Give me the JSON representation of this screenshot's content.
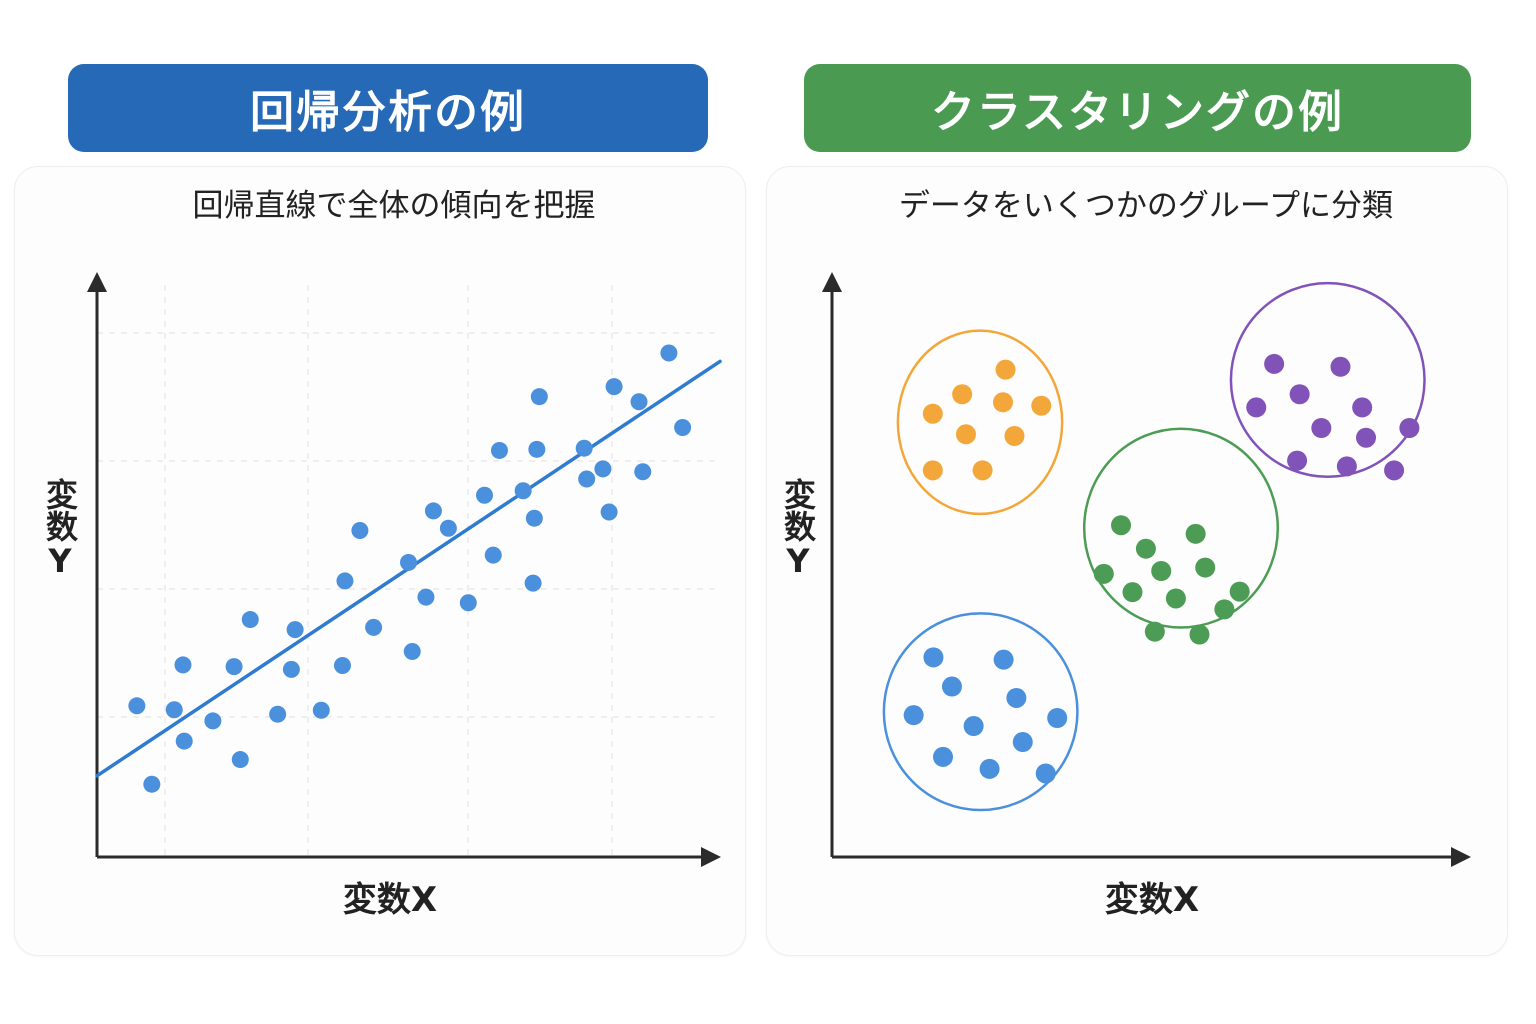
{
  "left_panel": {
    "header": "回帰分析の例",
    "subtitle": "回帰直線で全体の傾向を把握",
    "ylabel": "変数Y",
    "xlabel": "変数X",
    "header_color": "#2669b6",
    "point_color": "#4a90dd",
    "line_color": "#2f7bd0"
  },
  "right_panel": {
    "header": "クラスタリングの例",
    "subtitle": "データをいくつかのグループに分類",
    "ylabel": "変数Y",
    "xlabel": "変数X",
    "header_color": "#4b9a52"
  },
  "chart_data": [
    {
      "type": "scatter",
      "title": "回帰分析の例",
      "subtitle": "回帰直線で全体の傾向を把握",
      "xlabel": "変数X",
      "ylabel": "変数Y",
      "xlim": [
        0,
        100
      ],
      "ylim": [
        0,
        100
      ],
      "grid": true,
      "points": [
        [
          6.4,
          27.0
        ],
        [
          8.8,
          13.0
        ],
        [
          12.4,
          26.3
        ],
        [
          13.8,
          34.3
        ],
        [
          14.0,
          20.7
        ],
        [
          18.6,
          24.3
        ],
        [
          22.0,
          34.0
        ],
        [
          23.0,
          17.4
        ],
        [
          24.6,
          42.4
        ],
        [
          29.0,
          25.5
        ],
        [
          31.2,
          33.5
        ],
        [
          31.8,
          40.6
        ],
        [
          36.0,
          26.2
        ],
        [
          39.4,
          34.2
        ],
        [
          39.8,
          49.3
        ],
        [
          42.2,
          58.3
        ],
        [
          44.4,
          41.0
        ],
        [
          50.0,
          52.6
        ],
        [
          50.6,
          36.7
        ],
        [
          52.8,
          46.4
        ],
        [
          54.0,
          61.8
        ],
        [
          56.4,
          58.7
        ],
        [
          59.6,
          45.4
        ],
        [
          62.2,
          64.6
        ],
        [
          63.6,
          53.9
        ],
        [
          64.6,
          72.6
        ],
        [
          68.4,
          65.4
        ],
        [
          70.0,
          48.9
        ],
        [
          70.2,
          60.5
        ],
        [
          70.6,
          72.8
        ],
        [
          71.0,
          82.2
        ],
        [
          78.2,
          73.0
        ],
        [
          78.6,
          67.5
        ],
        [
          81.2,
          69.3
        ],
        [
          82.2,
          61.6
        ],
        [
          83.0,
          84.0
        ],
        [
          87.0,
          81.3
        ],
        [
          87.6,
          68.8
        ],
        [
          91.8,
          90.0
        ],
        [
          94.0,
          76.7
        ]
      ],
      "regression_line": {
        "x": [
          0,
          100
        ],
        "y": [
          14.5,
          88.5
        ]
      }
    },
    {
      "type": "scatter",
      "title": "クラスタリングの例",
      "subtitle": "データをいくつかのグループに分類",
      "xlabel": "変数X",
      "ylabel": "変数Y",
      "xlim": [
        0,
        100
      ],
      "ylim": [
        0,
        100
      ],
      "grid": false,
      "clusters": [
        {
          "color": "#f3a73a",
          "center": [
            23.2,
            76.0
          ],
          "radius": [
            15.7,
            17.8
          ],
          "points": [
            [
              27.2,
              85.2
            ],
            [
              20.4,
              80.9
            ],
            [
              26.8,
              79.5
            ],
            [
              32.8,
              78.9
            ],
            [
              15.8,
              77.5
            ],
            [
              21.0,
              73.9
            ],
            [
              28.6,
              73.6
            ],
            [
              15.8,
              67.6
            ],
            [
              23.6,
              67.6
            ]
          ]
        },
        {
          "color": "#8153b8",
          "center": [
            77.7,
            83.4
          ],
          "radius": [
            18.5,
            18.8
          ],
          "points": [
            [
              69.3,
              86.2
            ],
            [
              79.7,
              85.7
            ],
            [
              73.3,
              80.9
            ],
            [
              83.1,
              78.6
            ],
            [
              66.5,
              78.6
            ],
            [
              90.5,
              75.0
            ],
            [
              76.7,
              75.0
            ],
            [
              83.7,
              73.3
            ],
            [
              72.9,
              69.3
            ],
            [
              80.7,
              68.3
            ],
            [
              88.1,
              67.6
            ]
          ]
        },
        {
          "color": "#4d9c55",
          "center": [
            54.7,
            57.5
          ],
          "radius": [
            18.5,
            19.3
          ],
          "points": [
            [
              45.3,
              58.0
            ],
            [
              57.0,
              56.5
            ],
            [
              49.2,
              53.9
            ],
            [
              63.9,
              46.4
            ],
            [
              42.6,
              49.5
            ],
            [
              51.6,
              50.0
            ],
            [
              58.5,
              50.6
            ],
            [
              47.1,
              46.3
            ],
            [
              53.9,
              45.2
            ],
            [
              61.5,
              43.3
            ],
            [
              50.6,
              39.4
            ],
            [
              57.6,
              38.9
            ]
          ]
        },
        {
          "color": "#4a90dd",
          "center": [
            23.3,
            25.4
          ],
          "radius": [
            18.5,
            19.1
          ],
          "points": [
            [
              15.9,
              34.9
            ],
            [
              26.9,
              34.5
            ],
            [
              18.8,
              29.8
            ],
            [
              28.9,
              27.8
            ],
            [
              35.3,
              24.3
            ],
            [
              12.8,
              24.8
            ],
            [
              22.2,
              22.9
            ],
            [
              29.9,
              20.1
            ],
            [
              17.4,
              17.5
            ],
            [
              24.7,
              15.4
            ],
            [
              33.5,
              14.6
            ]
          ]
        }
      ]
    }
  ]
}
